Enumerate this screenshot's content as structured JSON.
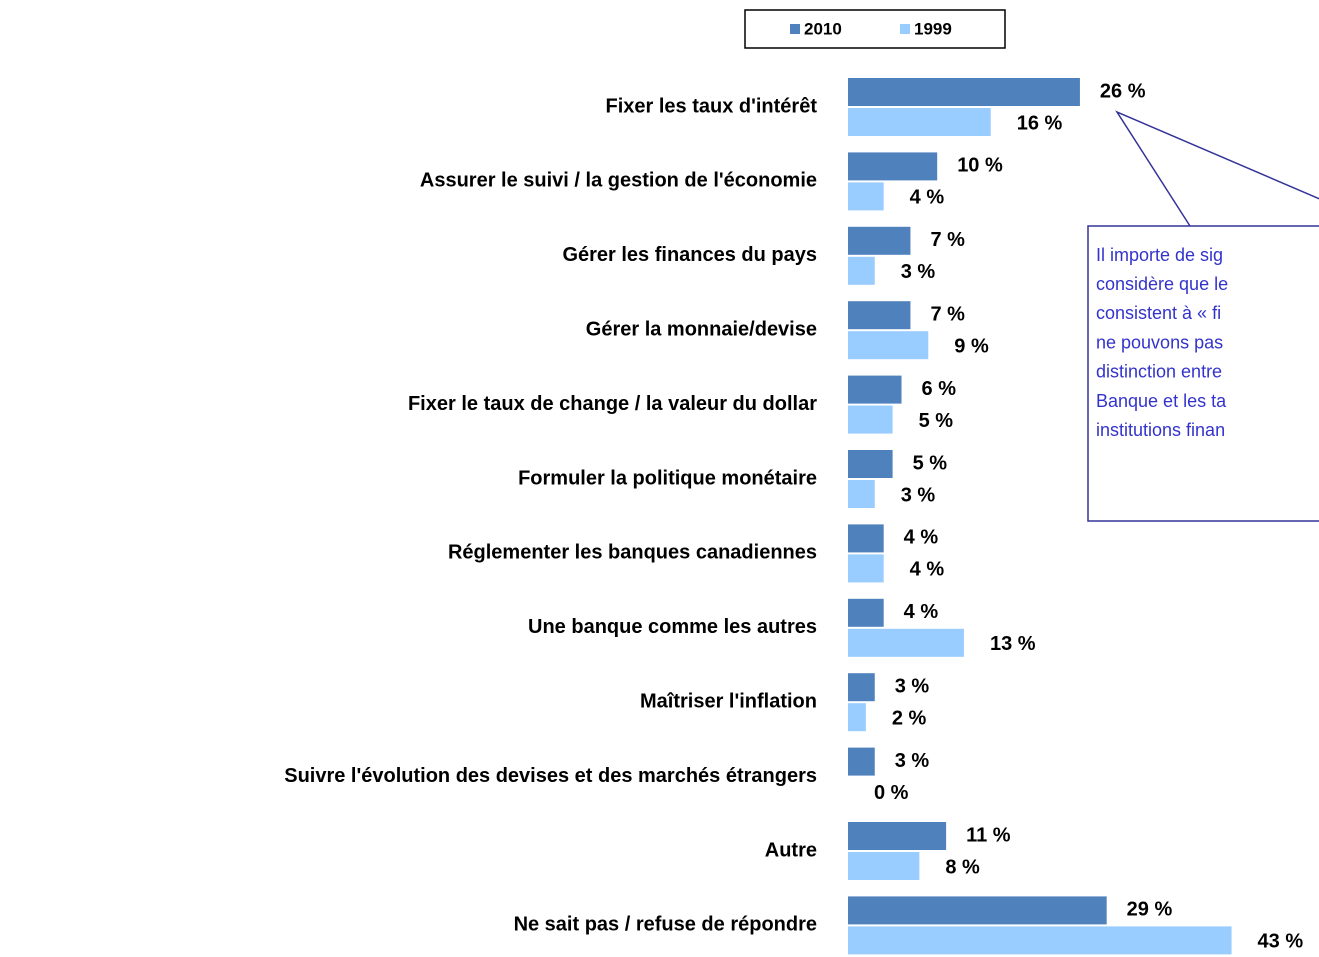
{
  "chart_data": {
    "type": "bar",
    "orientation": "horizontal",
    "categories": [
      "Fixer les taux d'intérêt",
      "Assurer le suivi / la gestion de l'économie",
      "Gérer les finances du pays",
      "Gérer la monnaie/devise",
      "Fixer le taux de change / la valeur du dollar",
      "Formuler la politique monétaire",
      "Réglementer les banques canadiennes",
      "Une banque comme les autres",
      "Maîtriser l'inflation",
      "Suivre l'évolution des devises et des marchés étrangers",
      "Autre",
      "Ne sait pas / refuse de répondre"
    ],
    "series": [
      {
        "name": "2010",
        "color": "#4f81bd",
        "values": [
          26,
          10,
          7,
          7,
          6,
          5,
          4,
          4,
          3,
          3,
          11,
          29
        ],
        "value_labels": [
          "26 %",
          "10 %",
          "7 %",
          "7 %",
          "6 %",
          "5 %",
          "4 %",
          "4 %",
          "3 %",
          "3 %",
          "11 %",
          "29 %"
        ]
      },
      {
        "name": "1999",
        "color": "#99ccff",
        "values": [
          16,
          4,
          3,
          9,
          5,
          3,
          4,
          13,
          2,
          0,
          8,
          43
        ],
        "value_labels": [
          "16 %",
          "4 %",
          "3 %",
          "9 %",
          "5 %",
          "3 %",
          "4 %",
          "13 %",
          "2 %",
          "0 %",
          "8 %",
          "43 %"
        ]
      }
    ],
    "legend": "top",
    "annotation": [
      "Il importe de sig",
      "considère que le",
      "consistent à « fi",
      "ne pouvons pas",
      "distinction entre",
      "Banque et les ta",
      "institutions finan"
    ]
  }
}
